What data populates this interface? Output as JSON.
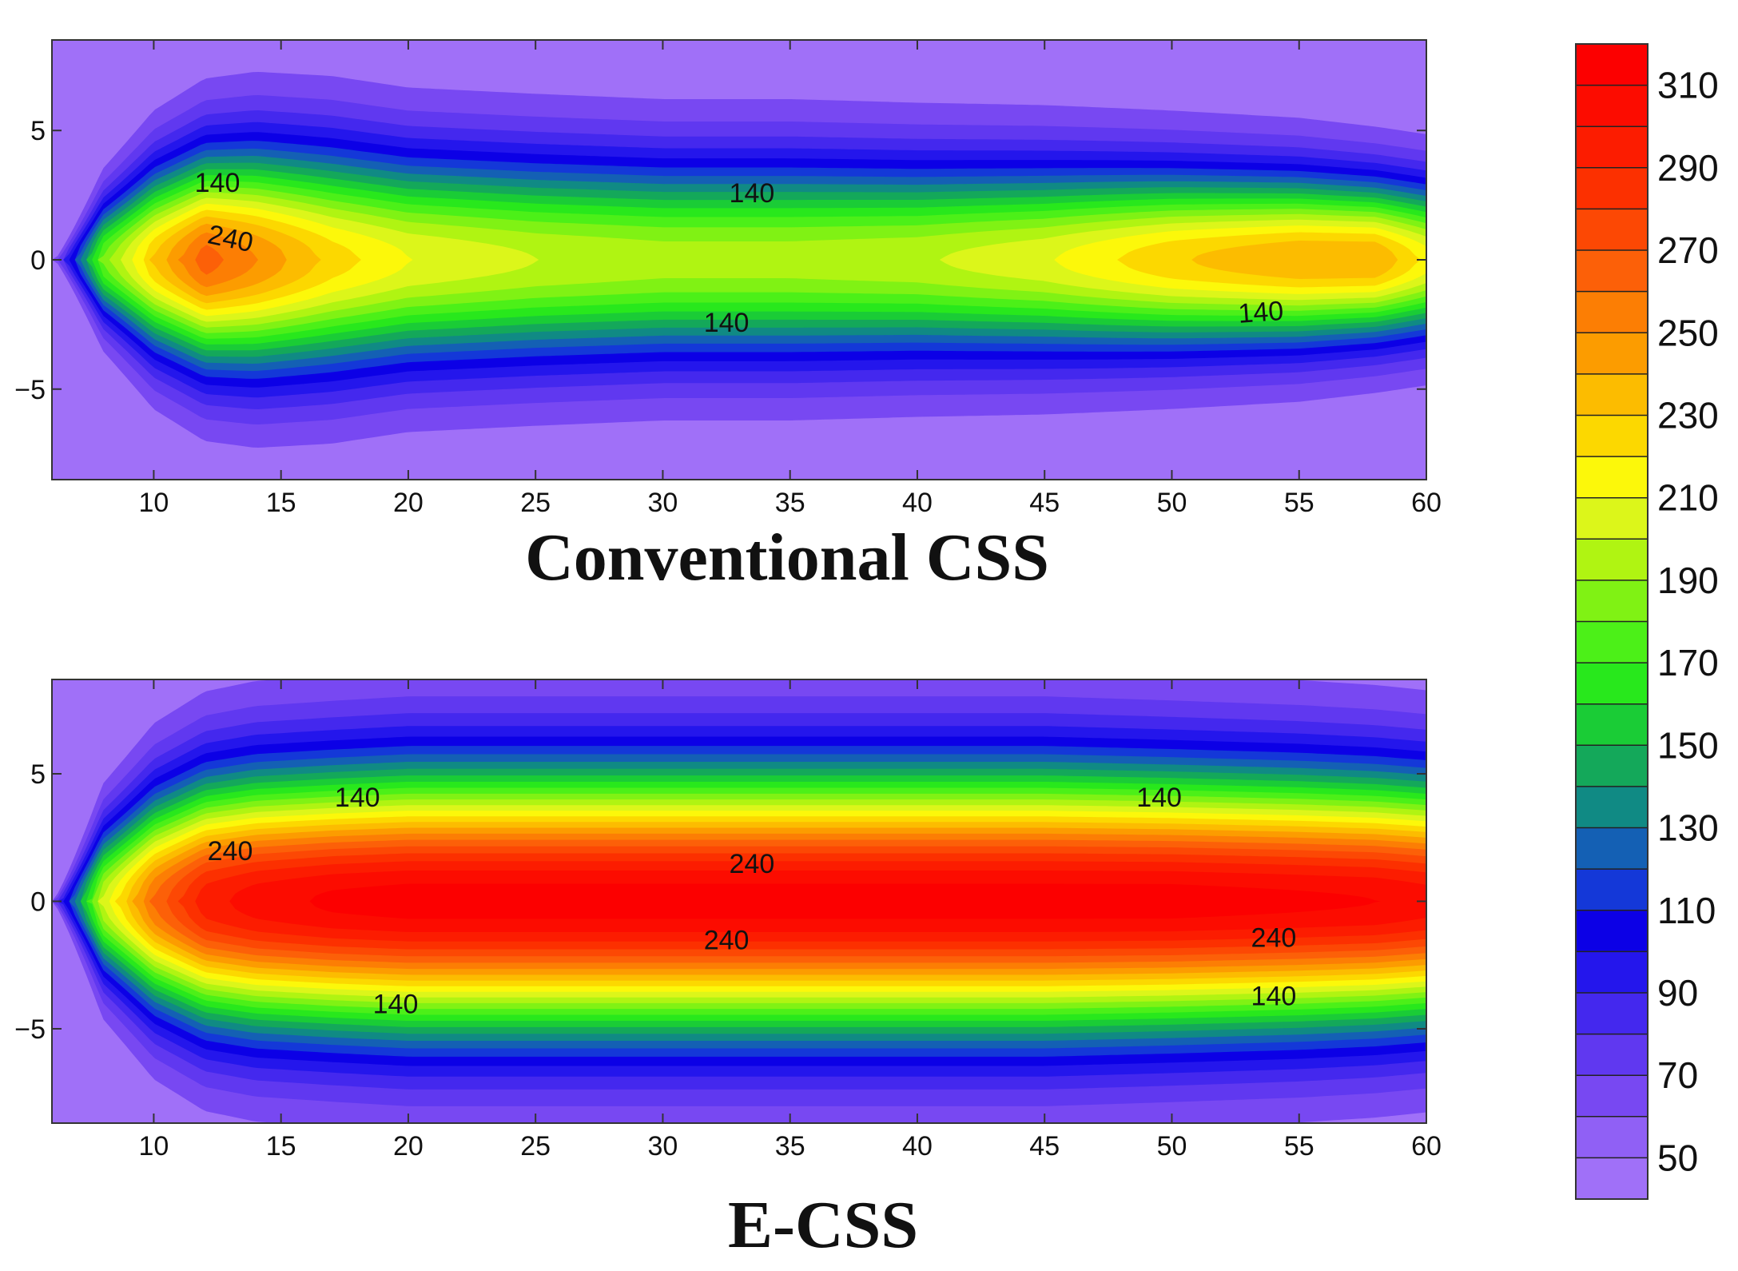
{
  "chart_data": [
    {
      "type": "heatmap",
      "subtype": "filled-contour",
      "title": "Conventional CSS",
      "xlim": [
        6,
        60
      ],
      "ylim": [
        -8.5,
        8.5
      ],
      "x_ticks": [
        10,
        15,
        20,
        25,
        30,
        35,
        40,
        45,
        50,
        55,
        60
      ],
      "y_ticks": [
        -5,
        0,
        5
      ],
      "y_tick_labels": [
        "−5",
        "0",
        "5"
      ],
      "background_level": 50,
      "field_profile": {
        "x": [
          6,
          8,
          10,
          12,
          14,
          17,
          20,
          25,
          30,
          35,
          40,
          45,
          50,
          55,
          58,
          60
        ],
        "peak": [
          50,
          180,
          230,
          265,
          250,
          225,
          210,
          200,
          195,
          195,
          198,
          208,
          228,
          240,
          240,
          215
        ],
        "width": [
          0,
          2.2,
          3.4,
          4.0,
          4.2,
          4.2,
          4.0,
          3.9,
          3.8,
          3.8,
          3.7,
          3.6,
          3.4,
          3.2,
          3.0,
          2.9
        ]
      },
      "contour_labels": [
        {
          "text": "140",
          "x": 12.5,
          "y": 2.9,
          "rotate": 0
        },
        {
          "text": "240",
          "x": 13.0,
          "y": 0.75,
          "rotate": 12
        },
        {
          "text": "140",
          "x": 33.5,
          "y": 2.5,
          "rotate": 0
        },
        {
          "text": "140",
          "x": 32.5,
          "y": -2.5,
          "rotate": 0
        },
        {
          "text": "140",
          "x": 53.5,
          "y": -2.1,
          "rotate": -4
        }
      ]
    },
    {
      "type": "heatmap",
      "subtype": "filled-contour",
      "title": "E-CSS",
      "xlim": [
        6,
        60
      ],
      "ylim": [
        -8.7,
        8.7
      ],
      "x_ticks": [
        10,
        15,
        20,
        25,
        30,
        35,
        40,
        45,
        50,
        55,
        60
      ],
      "y_ticks": [
        -5,
        0,
        5
      ],
      "y_tick_labels": [
        "−5",
        "0",
        "5"
      ],
      "background_level": 50,
      "field_profile": {
        "x": [
          6,
          8,
          10,
          12,
          14,
          17,
          20,
          25,
          30,
          35,
          40,
          45,
          50,
          55,
          58,
          60
        ],
        "peak": [
          60,
          200,
          260,
          295,
          305,
          312,
          315,
          315,
          315,
          315,
          315,
          315,
          315,
          312,
          310,
          305
        ],
        "width": [
          0,
          2.8,
          4.0,
          4.6,
          4.8,
          4.9,
          5.0,
          5.0,
          5.0,
          5.0,
          5.0,
          5.0,
          4.9,
          4.8,
          4.7,
          4.6
        ]
      },
      "contour_labels": [
        {
          "text": "140",
          "x": 18.0,
          "y": 4.0,
          "rotate": 0
        },
        {
          "text": "240",
          "x": 13.0,
          "y": 1.9,
          "rotate": 0
        },
        {
          "text": "240",
          "x": 33.5,
          "y": 1.4,
          "rotate": 0
        },
        {
          "text": "240",
          "x": 32.5,
          "y": -1.6,
          "rotate": 0
        },
        {
          "text": "240",
          "x": 54.0,
          "y": -1.5,
          "rotate": 0
        },
        {
          "text": "140",
          "x": 49.5,
          "y": 4.0,
          "rotate": 0
        },
        {
          "text": "140",
          "x": 19.5,
          "y": -4.1,
          "rotate": 0
        },
        {
          "text": "140",
          "x": 54.0,
          "y": -3.8,
          "rotate": 0
        }
      ]
    }
  ],
  "colorbar": {
    "min": 40,
    "max": 320,
    "step": 10,
    "labels": [
      "310",
      "290",
      "270",
      "250",
      "230",
      "210",
      "190",
      "170",
      "150",
      "130",
      "110",
      "90",
      "70",
      "50"
    ],
    "label_values": [
      310,
      290,
      270,
      250,
      230,
      210,
      190,
      170,
      150,
      130,
      110,
      90,
      70,
      50
    ],
    "levels": [
      {
        "min": 40,
        "color": "#a070f8"
      },
      {
        "min": 50,
        "color": "#9060f5"
      },
      {
        "min": 60,
        "color": "#7848f2"
      },
      {
        "min": 70,
        "color": "#6038f0"
      },
      {
        "min": 80,
        "color": "#4428ee"
      },
      {
        "min": 90,
        "color": "#2416ec"
      },
      {
        "min": 100,
        "color": "#0c00e6"
      },
      {
        "min": 110,
        "color": "#1438d8"
      },
      {
        "min": 120,
        "color": "#1460b4"
      },
      {
        "min": 130,
        "color": "#108a84"
      },
      {
        "min": 140,
        "color": "#14a85a"
      },
      {
        "min": 150,
        "color": "#1acc36"
      },
      {
        "min": 160,
        "color": "#28e81c"
      },
      {
        "min": 170,
        "color": "#4cf018"
      },
      {
        "min": 180,
        "color": "#80f214"
      },
      {
        "min": 190,
        "color": "#b0f412"
      },
      {
        "min": 200,
        "color": "#dcf61a"
      },
      {
        "min": 210,
        "color": "#fcf80a"
      },
      {
        "min": 220,
        "color": "#fcd800"
      },
      {
        "min": 230,
        "color": "#fcbc00"
      },
      {
        "min": 240,
        "color": "#fc9c00"
      },
      {
        "min": 250,
        "color": "#fc7e04"
      },
      {
        "min": 260,
        "color": "#fc6008"
      },
      {
        "min": 270,
        "color": "#fc4804"
      },
      {
        "min": 280,
        "color": "#fc3000"
      },
      {
        "min": 290,
        "color": "#fc1c00"
      },
      {
        "min": 300,
        "color": "#fc0c00"
      },
      {
        "min": 310,
        "color": "#fc0000"
      }
    ]
  }
}
